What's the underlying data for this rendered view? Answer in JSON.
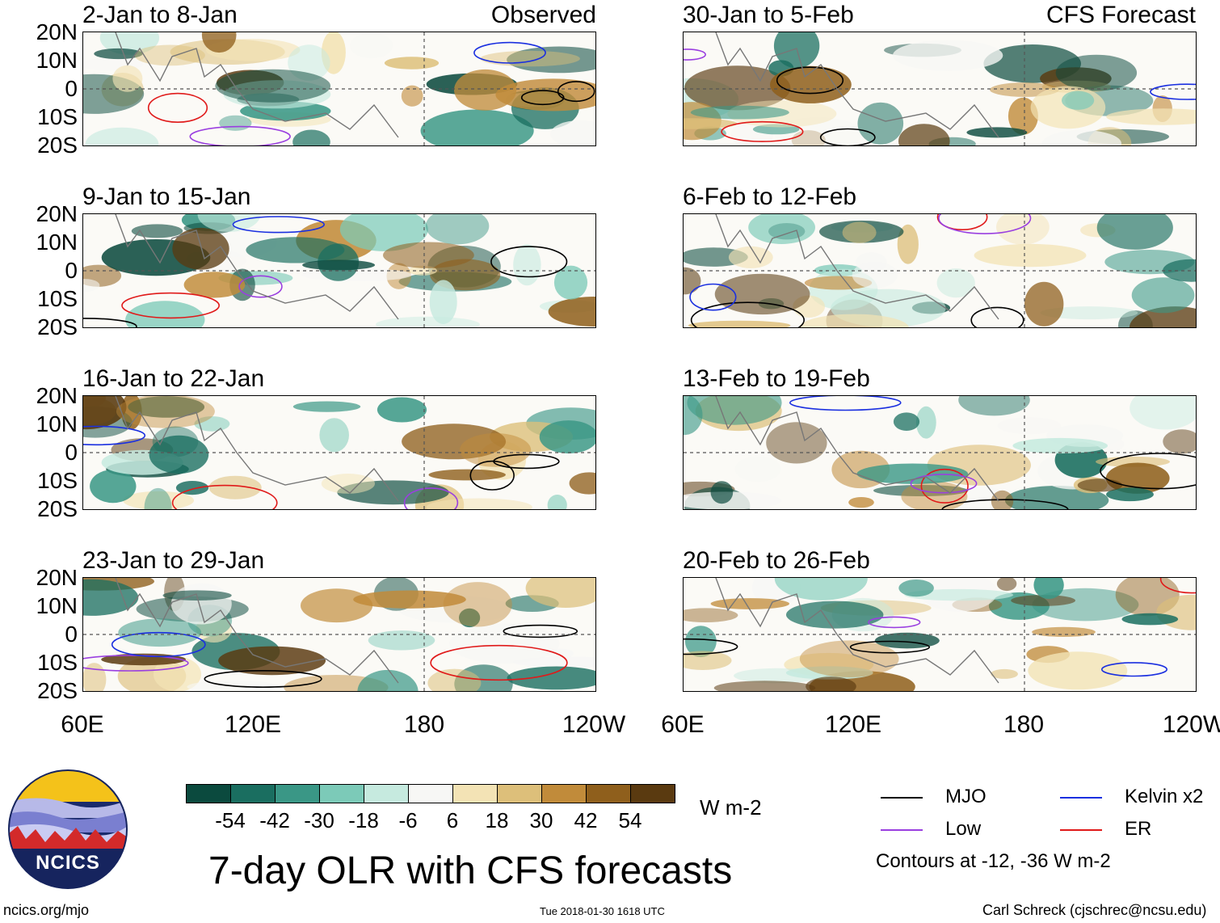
{
  "observed_label": "Observed",
  "forecast_label": "CFS Forecast",
  "lat_labels": [
    "20N",
    "10N",
    "0",
    "10S",
    "20S"
  ],
  "lon_labels": [
    "60E",
    "120E",
    "180",
    "120W"
  ],
  "panels_left": [
    {
      "title": "2-Jan to 8-Jan"
    },
    {
      "title": "9-Jan to 15-Jan"
    },
    {
      "title": "16-Jan to 22-Jan"
    },
    {
      "title": "23-Jan to 29-Jan"
    }
  ],
  "panels_right": [
    {
      "title": "30-Jan to 5-Feb"
    },
    {
      "title": "6-Feb to 12-Feb"
    },
    {
      "title": "13-Feb to 19-Feb"
    },
    {
      "title": "20-Feb to 26-Feb"
    }
  ],
  "colorbar": {
    "labels": [
      "-54",
      "-42",
      "-30",
      "-18",
      "-6",
      "6",
      "18",
      "30",
      "42",
      "54"
    ],
    "colors": [
      "#0b4a3e",
      "#1a6e60",
      "#3a9786",
      "#7ccab8",
      "#c6eadf",
      "#f7f7f5",
      "#f3e3b5",
      "#ddbf7a",
      "#c18b3a",
      "#8f5f1c",
      "#5a3a10"
    ],
    "units": "W m-2"
  },
  "legend": {
    "items": [
      {
        "label": "MJO",
        "color": "#000000"
      },
      {
        "label": "Kelvin x2",
        "color": "#1a2fe0"
      },
      {
        "label": "Low",
        "color": "#9a3fe0"
      },
      {
        "label": "ER",
        "color": "#e01a1a"
      }
    ],
    "contours_note": "Contours at -12, -36 W m-2"
  },
  "main_title": "7-day OLR with CFS forecasts",
  "logo_text": "NCICS",
  "footer": {
    "url": "ncics.org/mjo",
    "timestamp": "Tue 2018-01-30 1618 UTC",
    "credit": "Carl Schreck (cjschrec@ncsu.edu)"
  }
}
